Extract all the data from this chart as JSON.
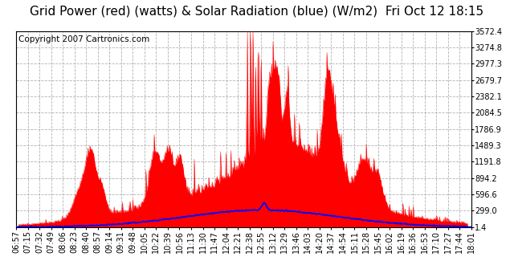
{
  "title": "Grid Power (red) (watts) & Solar Radiation (blue) (W/m2)  Fri Oct 12 18:15",
  "copyright": "Copyright 2007 Cartronics.com",
  "background_color": "#ffffff",
  "plot_bg_color": "#ffffff",
  "grid_color": "#aaaaaa",
  "ylim": [
    1.4,
    3572.4
  ],
  "yticks": [
    1.4,
    299.0,
    596.6,
    894.2,
    1191.8,
    1489.3,
    1786.9,
    2084.5,
    2382.1,
    2679.7,
    2977.3,
    3274.8,
    3572.4
  ],
  "x_labels": [
    "06:57",
    "07:15",
    "07:32",
    "07:49",
    "08:06",
    "08:23",
    "08:40",
    "08:57",
    "09:14",
    "09:31",
    "09:48",
    "10:05",
    "10:22",
    "10:39",
    "10:56",
    "11:13",
    "11:30",
    "11:47",
    "12:04",
    "12:21",
    "12:38",
    "12:55",
    "13:12",
    "13:29",
    "13:46",
    "14:03",
    "14:20",
    "14:37",
    "14:54",
    "15:11",
    "15:28",
    "15:45",
    "16:02",
    "16:19",
    "16:36",
    "16:53",
    "17:10",
    "17:27",
    "17:44",
    "18:01"
  ],
  "red_color": "#ff0000",
  "blue_color": "#0000ff",
  "title_fontsize": 11,
  "tick_fontsize": 7,
  "copyright_fontsize": 7.5
}
